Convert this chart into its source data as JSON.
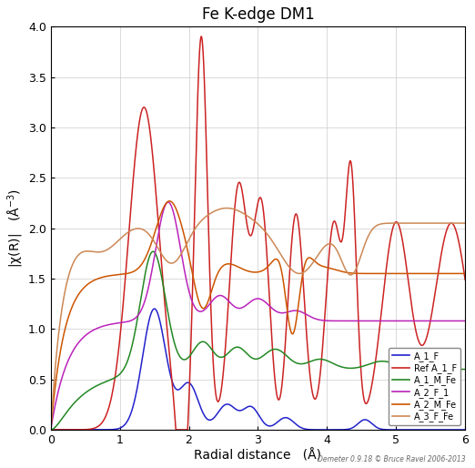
{
  "title": "Fe K-edge DM1",
  "xlabel": "Radial distance   (Å)",
  "xlim": [
    0,
    6
  ],
  "ylim": [
    0,
    4
  ],
  "yticks": [
    0,
    0.5,
    1.0,
    1.5,
    2.0,
    2.5,
    3.0,
    3.5,
    4.0
  ],
  "xticks": [
    0,
    1,
    2,
    3,
    4,
    5,
    6
  ],
  "credit": "Demeter 0.9.18 © Bruce Ravel 2006-2013",
  "legend_labels": [
    "A_1_F",
    "Ref A_1_F",
    "A_1_M_Fe",
    "A_2_F_1",
    "A_2_M_Fe",
    "A_3_F_Fe"
  ],
  "colors": [
    "#2222cc",
    "#cc2222",
    "#228822",
    "#bb22bb",
    "#cc5500",
    "#cc8855"
  ]
}
